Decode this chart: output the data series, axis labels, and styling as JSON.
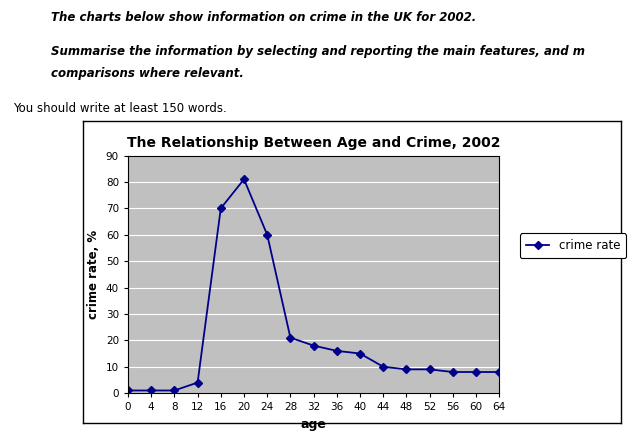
{
  "title": "The Relationship Between Age and Crime, 2002",
  "xlabel": "age",
  "ylabel": "crime rate, %",
  "ages": [
    0,
    4,
    8,
    12,
    16,
    20,
    24,
    28,
    32,
    36,
    40,
    44,
    48,
    52,
    56,
    60,
    64
  ],
  "crime_rate": [
    1,
    1,
    1,
    4,
    70,
    81,
    60,
    21,
    18,
    16,
    15,
    10,
    9,
    9,
    8,
    8,
    8
  ],
  "ylim": [
    0,
    90
  ],
  "yticks": [
    0,
    10,
    20,
    30,
    40,
    50,
    60,
    70,
    80,
    90
  ],
  "line_color": "#00008B",
  "marker": "D",
  "marker_size": 4,
  "legend_label": "crime rate",
  "plot_bg_color": "#C0C0C0",
  "outer_bg_color": "#FFFFFF",
  "box_bg_color": "#FFFFFF",
  "text_line1": "The charts below show information on crime in the UK for 2002.",
  "text_line2": "Summarise the information by selecting and reporting the main features, and m",
  "text_line3": "comparisons where relevant.",
  "text_line4": "You should write at least 150 words.",
  "figsize": [
    6.4,
    4.32
  ],
  "dpi": 100
}
